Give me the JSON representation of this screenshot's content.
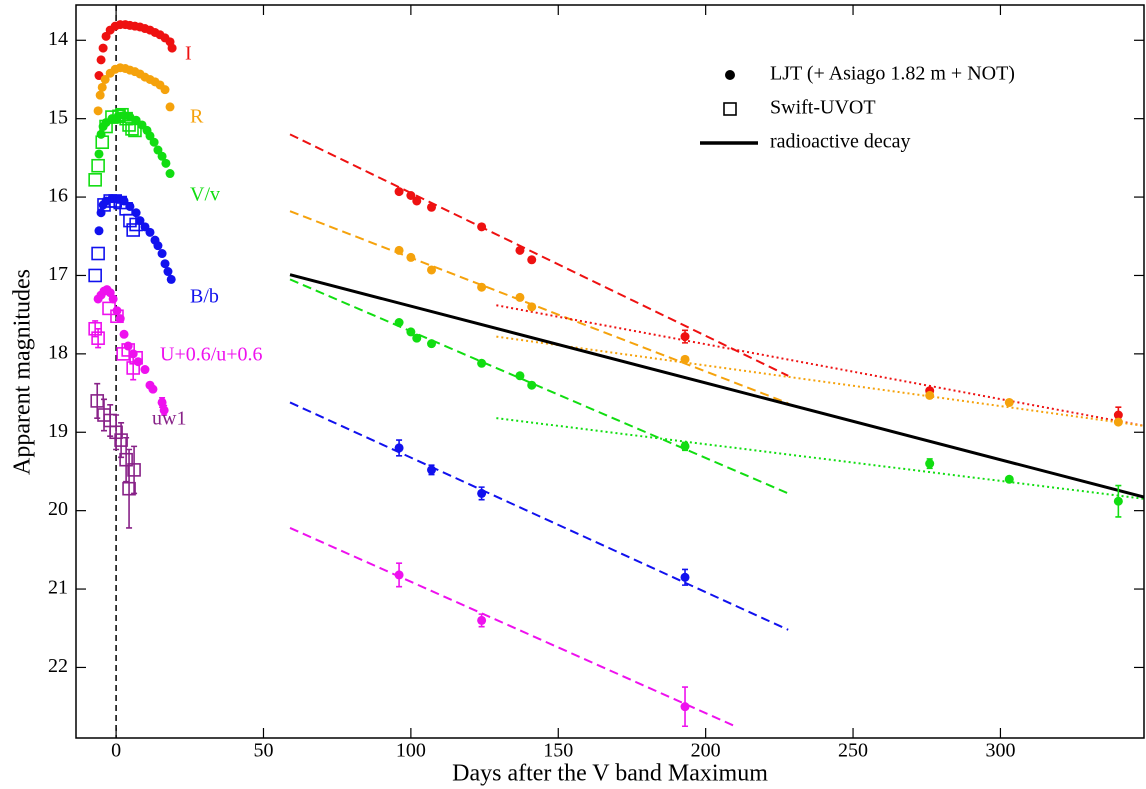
{
  "chart_data": {
    "type": "scatter",
    "xlabel": "Days after the V band Maximum",
    "ylabel": "Apparent magnitudes",
    "xlim": [
      -13.6,
      348.7
    ],
    "ylim": [
      22.9,
      13.55
    ],
    "xticks": [
      0,
      50,
      100,
      150,
      200,
      250,
      300
    ],
    "yticks": [
      14,
      15,
      16,
      17,
      18,
      19,
      20,
      21,
      22
    ],
    "vline": 0,
    "legend": [
      {
        "label": "LJT (+ Asiago 1.82 m + NOT)",
        "marker": "circle"
      },
      {
        "label": "Swift-UVOT",
        "marker": "square"
      },
      {
        "label": "radioactive decay",
        "marker": "line"
      }
    ],
    "series": [
      {
        "name": "I",
        "color": "#ee1111",
        "ljt": {
          "x": [
            -5.8,
            -5.1,
            -4.4,
            -3.4,
            -2.0,
            -0.3,
            1.4,
            3.1,
            4.7,
            6.4,
            8.1,
            9.8,
            11.5,
            13.2,
            14.9,
            16.6,
            18.3,
            19.0,
            96,
            100,
            102,
            107,
            124,
            137,
            141,
            193,
            276,
            340
          ],
          "values": [
            14.45,
            14.25,
            14.1,
            13.95,
            13.87,
            13.82,
            13.8,
            13.8,
            13.81,
            13.82,
            13.83,
            13.85,
            13.87,
            13.9,
            13.93,
            13.97,
            14.02,
            14.1,
            15.93,
            15.98,
            16.05,
            16.13,
            16.38,
            16.68,
            16.8,
            17.78,
            18.47,
            18.78
          ],
          "errors": [
            null,
            null,
            null,
            null,
            null,
            null,
            null,
            null,
            null,
            null,
            null,
            null,
            null,
            null,
            null,
            null,
            null,
            null,
            null,
            null,
            null,
            null,
            null,
            null,
            null,
            0.08,
            null,
            0.1
          ]
        }
      },
      {
        "name": "R",
        "color": "#f5a20c",
        "ljt": {
          "x": [
            -6.1,
            -5.4,
            -4.7,
            -3.7,
            -2.0,
            -0.3,
            1.4,
            3.1,
            4.7,
            6.4,
            8.1,
            9.8,
            11.5,
            13.2,
            14.9,
            16.6,
            18.3,
            96,
            100,
            107,
            124,
            137,
            141,
            193,
            276,
            303,
            340
          ],
          "values": [
            14.9,
            14.7,
            14.6,
            14.5,
            14.42,
            14.37,
            14.35,
            14.36,
            14.38,
            14.4,
            14.43,
            14.47,
            14.5,
            14.53,
            14.57,
            14.63,
            14.85,
            16.68,
            16.77,
            16.93,
            17.15,
            17.28,
            17.4,
            18.07,
            18.53,
            18.62,
            18.87
          ]
        }
      },
      {
        "name": "V/v",
        "color": "#11dd11",
        "ljt": {
          "x": [
            -5.8,
            -5.1,
            -4.4,
            -3.4,
            -1.4,
            0.7,
            2.7,
            4.7,
            6.8,
            8.8,
            10.5,
            11.5,
            12.9,
            14.2,
            15.6,
            16.9,
            18.3,
            96,
            100,
            102,
            107,
            124,
            137,
            141,
            193,
            276,
            303,
            340
          ],
          "values": [
            15.45,
            15.2,
            15.1,
            15.05,
            15.0,
            14.97,
            14.96,
            14.98,
            15.02,
            15.08,
            15.15,
            15.22,
            15.3,
            15.4,
            15.48,
            15.57,
            15.7,
            17.6,
            17.72,
            17.8,
            17.87,
            18.12,
            18.28,
            18.4,
            19.18,
            19.4,
            19.6,
            19.88
          ],
          "errors": [
            null,
            null,
            null,
            null,
            null,
            null,
            null,
            null,
            null,
            null,
            null,
            null,
            null,
            null,
            null,
            null,
            null,
            null,
            null,
            null,
            null,
            null,
            null,
            null,
            0.05,
            0.06,
            null,
            0.2
          ]
        },
        "swift": {
          "x": [
            -7.1,
            -6.1,
            -4.7,
            -3.4,
            -1.4,
            1.0,
            2.0,
            3.4,
            4.4,
            5.4,
            6.4
          ],
          "values": [
            15.78,
            15.6,
            15.3,
            15.1,
            14.98,
            14.97,
            14.95,
            15.0,
            15.08,
            15.13,
            15.15
          ]
        }
      },
      {
        "name": "B/b",
        "color": "#1111ee",
        "ljt": {
          "x": [
            -5.8,
            -5.1,
            -4.4,
            -3.4,
            -1.4,
            0.7,
            2.7,
            4.7,
            6.8,
            8.1,
            9.8,
            11.5,
            13.2,
            14.2,
            15.6,
            16.6,
            17.6,
            18.7,
            96,
            107,
            124,
            193
          ],
          "values": [
            16.43,
            16.2,
            16.1,
            16.05,
            16.02,
            16.03,
            16.05,
            16.12,
            16.2,
            16.3,
            16.38,
            16.45,
            16.55,
            16.62,
            16.72,
            16.85,
            16.95,
            17.05,
            19.2,
            19.48,
            19.78,
            20.85
          ],
          "errors": [
            null,
            null,
            null,
            null,
            null,
            null,
            null,
            null,
            null,
            null,
            null,
            null,
            null,
            null,
            null,
            null,
            null,
            null,
            0.1,
            0.06,
            0.08,
            0.1
          ]
        },
        "swift": {
          "x": [
            -7.1,
            -6.1,
            -4.1,
            -2.0,
            -0.3,
            1.4,
            3.4,
            4.7,
            5.8,
            6.8
          ],
          "values": [
            17.0,
            16.72,
            16.1,
            16.05,
            16.05,
            16.07,
            16.15,
            16.3,
            16.42,
            16.35
          ]
        }
      },
      {
        "name": "U+0.6/u+0.6",
        "color": "#ee11ee",
        "ljt": {
          "x": [
            -6.1,
            -5.1,
            -4.1,
            -3.1,
            -2.0,
            -1.0,
            0.3,
            1.4,
            2.7,
            4.1,
            5.8,
            7.5,
            9.8,
            11.5,
            12.5,
            15.6,
            16.3,
            96,
            124,
            193
          ],
          "values": [
            17.3,
            17.25,
            17.2,
            17.18,
            17.22,
            17.3,
            17.45,
            17.55,
            17.75,
            17.9,
            18.0,
            18.1,
            18.2,
            18.4,
            18.45,
            18.62,
            18.72,
            20.82,
            21.4,
            22.5
          ],
          "errors": [
            null,
            null,
            null,
            null,
            null,
            null,
            null,
            null,
            null,
            null,
            null,
            null,
            null,
            null,
            null,
            0.06,
            0.06,
            0.15,
            0.08,
            0.25
          ]
        },
        "swift": {
          "x": [
            -7.1,
            -6.1,
            -2.4,
            0.3,
            2.4,
            4.1,
            5.8,
            6.8
          ],
          "values": [
            17.68,
            17.8,
            17.42,
            17.52,
            18.0,
            17.95,
            18.18,
            18.05
          ],
          "errors": [
            0.1,
            0.12,
            null,
            null,
            null,
            null,
            0.15,
            null
          ]
        }
      },
      {
        "name": "uw1",
        "color": "#882288",
        "swift": {
          "x": [
            -6.4,
            -4.1,
            -2.0,
            0,
            1.7,
            3.4,
            4.4,
            6.1
          ],
          "values": [
            18.6,
            18.78,
            18.85,
            19.0,
            19.1,
            19.35,
            19.72,
            19.48
          ],
          "errors": [
            0.22,
            0.2,
            0.2,
            0.22,
            0.22,
            0.28,
            0.5,
            0.3
          ]
        }
      }
    ],
    "lines": [
      {
        "color": "#ee1111",
        "style": "dashed",
        "x": [
          59,
          228
        ],
        "values": [
          15.2,
          18.28
        ]
      },
      {
        "color": "#f5a20c",
        "style": "dashed",
        "x": [
          59,
          228
        ],
        "values": [
          16.18,
          18.63
        ]
      },
      {
        "color": "#11dd11",
        "style": "dashed",
        "x": [
          59,
          228
        ],
        "values": [
          17.05,
          19.78
        ]
      },
      {
        "color": "#1111ee",
        "style": "dashed",
        "x": [
          59,
          228
        ],
        "values": [
          18.62,
          21.52
        ]
      },
      {
        "color": "#ee11ee",
        "style": "dashed",
        "x": [
          59,
          210
        ],
        "values": [
          20.22,
          22.75
        ]
      },
      {
        "color": "#ee1111",
        "style": "dotted",
        "x": [
          129,
          349
        ],
        "values": [
          17.38,
          18.92
        ]
      },
      {
        "color": "#f5a20c",
        "style": "dotted",
        "x": [
          129,
          349
        ],
        "values": [
          17.78,
          18.92
        ]
      },
      {
        "color": "#11dd11",
        "style": "dotted",
        "x": [
          129,
          349
        ],
        "values": [
          18.82,
          19.85
        ]
      },
      {
        "color": "#000000",
        "style": "solid",
        "x": [
          59,
          349
        ],
        "values": [
          16.99,
          19.83
        ]
      }
    ]
  }
}
